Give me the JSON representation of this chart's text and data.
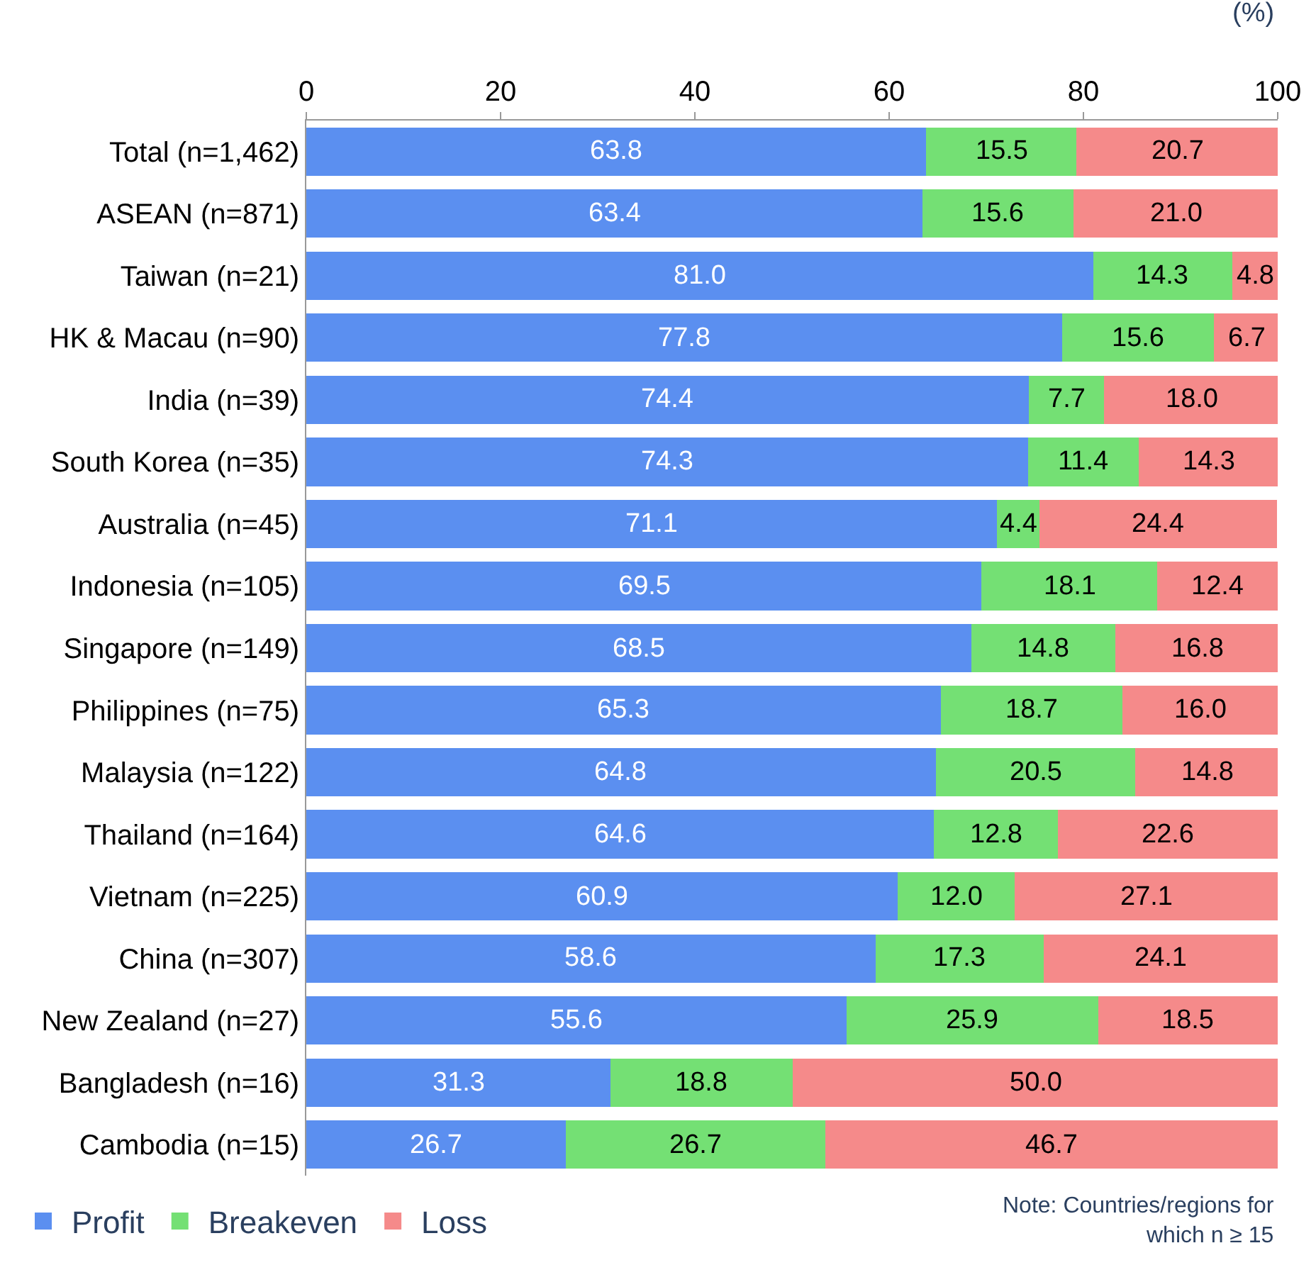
{
  "chart_data": {
    "type": "bar",
    "orientation": "horizontal",
    "stacked": true,
    "legend": "bottom left",
    "xlabel": "(%)",
    "xlim": [
      0,
      100
    ],
    "xticks": [
      0,
      20,
      40,
      60,
      80,
      100
    ],
    "categories": [
      "Total (n=1,462)",
      "ASEAN (n=871)",
      "Taiwan (n=21)",
      "HK & Macau (n=90)",
      "India (n=39)",
      "South Korea (n=35)",
      "Australia (n=45)",
      "Indonesia (n=105)",
      "Singapore (n=149)",
      "Philippines (n=75)",
      "Malaysia (n=122)",
      "Thailand (n=164)",
      "Vietnam (n=225)",
      "China (n=307)",
      "New Zealand (n=27)",
      "Bangladesh (n=16)",
      "Cambodia (n=15)"
    ],
    "series": [
      {
        "name": "Profit",
        "color": "#5b8ff0",
        "values": [
          63.8,
          63.4,
          81.0,
          77.8,
          74.4,
          74.3,
          71.1,
          69.5,
          68.5,
          65.3,
          64.8,
          64.6,
          60.9,
          58.6,
          55.6,
          31.3,
          26.7
        ],
        "value_labels": [
          "63.8",
          "63.4",
          "81.0",
          "77.8",
          "74.4",
          "74.3",
          "71.1",
          "69.5",
          "68.5",
          "65.3",
          "64.8",
          "64.6",
          "60.9",
          "58.6",
          "55.6",
          "31.3",
          "26.7"
        ]
      },
      {
        "name": "Breakeven",
        "color": "#74e074",
        "values": [
          15.5,
          15.6,
          14.3,
          15.6,
          7.7,
          11.4,
          4.4,
          18.1,
          14.8,
          18.7,
          20.5,
          12.8,
          12.0,
          17.3,
          25.9,
          18.8,
          26.7
        ],
        "value_labels": [
          "15.5",
          "15.6",
          "14.3",
          "15.6",
          "7.7",
          "11.4",
          "4.4",
          "18.1",
          "14.8",
          "18.7",
          "20.5",
          "12.8",
          "12.0",
          "17.3",
          "25.9",
          "18.8",
          "26.7"
        ]
      },
      {
        "name": "Loss",
        "color": "#f58a8a",
        "values": [
          20.7,
          21.0,
          4.8,
          6.7,
          18.0,
          14.3,
          24.4,
          12.4,
          16.8,
          16.0,
          14.8,
          22.6,
          27.1,
          24.1,
          18.5,
          50.0,
          46.7
        ],
        "value_labels": [
          "20.7",
          "21.0",
          "4.8",
          "6.7",
          "18.0",
          "14.3",
          "24.4",
          "12.4",
          "16.8",
          "16.0",
          "14.8",
          "22.6",
          "27.1",
          "24.1",
          "18.5",
          "50.0",
          "46.7"
        ]
      }
    ],
    "annotations": [
      "Note: Countries/regions for\nwhich n ≥ 15"
    ]
  }
}
